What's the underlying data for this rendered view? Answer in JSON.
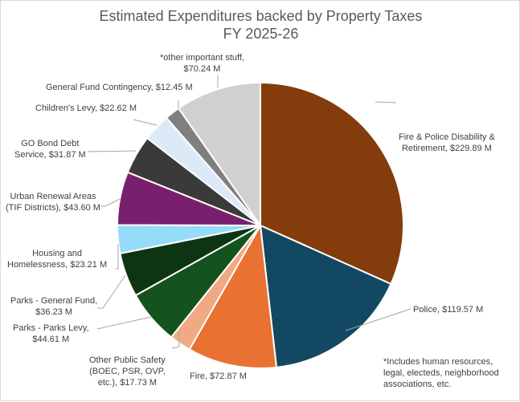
{
  "chart_data": {
    "type": "pie",
    "title": "Estimated Expenditures backed by Property Taxes",
    "subtitle": "FY 2025-26",
    "units": "$ Millions",
    "start_angle_deg": 0,
    "direction": "clockwise",
    "slices": [
      {
        "label": "Fire & Police Disability & Retirement",
        "value": 229.89,
        "display": "Fire & Police Disability & Retirement, $229.89 M",
        "color": "#843C0C"
      },
      {
        "label": "Police",
        "value": 119.57,
        "display": "Police, $119.57 M",
        "color": "#134862"
      },
      {
        "label": "Fire",
        "value": 72.87,
        "display": "Fire, $72.87 M",
        "color": "#E97132"
      },
      {
        "label": "Other Public Safety (BOEC, PSR, OVP, etc.)",
        "value": 17.73,
        "display": "Other Public Safety (BOEC, PSR, OVP, etc.), $17.73 M",
        "color": "#F1A983"
      },
      {
        "label": "Parks - Parks Levy",
        "value": 44.61,
        "display": "Parks - Parks Levy, $44.61 M",
        "color": "#15531E"
      },
      {
        "label": "Parks - General Fund",
        "value": 36.23,
        "display": "Parks - General Fund, $36.23 M",
        "color": "#0E3513"
      },
      {
        "label": "Housing and Homelessness",
        "value": 23.21,
        "display": "Housing and Homelessness, $23.21 M",
        "color": "#94DCF8"
      },
      {
        "label": "Urban Renewal Areas (TIF Districts)",
        "value": 43.6,
        "display": "Urban Renewal Areas (TIF Districts), $43.60 M",
        "color": "#78206E"
      },
      {
        "label": "GO Bond Debt Service",
        "value": 31.87,
        "display": "GO Bond Debt Service, $31.87 M",
        "color": "#3A3A3A"
      },
      {
        "label": "Children's Levy",
        "value": 22.62,
        "display": "Children's Levy, $22.62 M",
        "color": "#DCEAF7"
      },
      {
        "label": "General Fund Contingency",
        "value": 12.45,
        "display": "General Fund Contingency, $12.45 M",
        "color": "#7F7F7F"
      },
      {
        "label": "*other important stuff",
        "value": 70.24,
        "display": "*other important stuff, $70.24 M",
        "color": "#D0D0D0"
      }
    ],
    "legend": "none (data labels with leader lines)",
    "footnote": "*Includes human resources, legal, electeds, neighborhood associations, etc."
  },
  "labels": {
    "fpdr": [
      "Fire & Police Disability &",
      "Retirement, $229.89 M"
    ],
    "police": [
      "Police, $119.57 M"
    ],
    "fire": [
      "Fire, $72.87 M"
    ],
    "ops": [
      "Other Public Safety",
      "(BOEC, PSR, OVP,",
      "etc.), $17.73 M"
    ],
    "parks_levy": [
      "Parks - Parks Levy,",
      "$44.61 M"
    ],
    "parks_gf": [
      "Parks - General Fund,",
      "$36.23 M"
    ],
    "housing": [
      "Housing and",
      "Homelessness, $23.21 M"
    ],
    "ura": [
      "Urban Renewal Areas",
      "(TIF Districts), $43.60 M"
    ],
    "gobond": [
      "GO Bond Debt",
      "Service, $31.87 M"
    ],
    "childrens": [
      "Children's Levy, $22.62 M"
    ],
    "contingency": [
      "General Fund Contingency, $12.45 M"
    ],
    "other": [
      "*other important stuff,",
      "$70.24 M"
    ]
  },
  "footnote": "*Includes human resources,\nlegal, electeds, neighborhood\nassociations, etc."
}
